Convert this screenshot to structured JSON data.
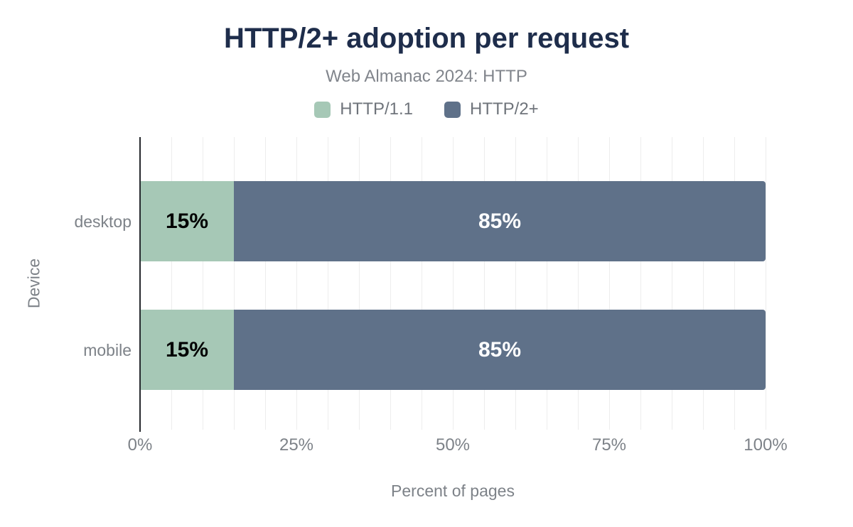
{
  "title": "HTTP/2+ adoption per request",
  "subtitle": "Web Almanac 2024: HTTP",
  "colors": {
    "title_text": "#1e2d4b",
    "muted_text": "#7d8288",
    "legend_text": "#6f747b",
    "axis_line": "#26292e",
    "gridline": "#ededed",
    "series_http11": "#a6c8b6",
    "series_http2plus": "#5f7189",
    "data_label_on_light": "#000000",
    "data_label_on_dark": "#ffffff"
  },
  "legend": [
    {
      "label": "HTTP/1.1",
      "color": "#a6c8b6"
    },
    {
      "label": "HTTP/2+",
      "color": "#5f7189"
    }
  ],
  "chart_data": {
    "type": "bar",
    "orientation": "horizontal",
    "stacked": true,
    "title": "HTTP/2+ adoption per request",
    "subtitle": "Web Almanac 2024: HTTP",
    "categories": [
      "desktop",
      "mobile"
    ],
    "series": [
      {
        "name": "HTTP/1.1",
        "color": "#a6c8b6",
        "values": [
          15,
          15
        ],
        "labels": [
          "15%",
          "15%"
        ],
        "label_color": "#000000"
      },
      {
        "name": "HTTP/2+",
        "color": "#5f7189",
        "values": [
          85,
          85
        ],
        "labels": [
          "85%",
          "85%"
        ],
        "label_color": "#ffffff"
      }
    ],
    "xlabel": "Percent of pages",
    "ylabel": "Device",
    "xlim": [
      0,
      100
    ],
    "x_ticks": [
      "0%",
      "25%",
      "50%",
      "75%",
      "100%"
    ],
    "x_tick_values": [
      0,
      25,
      50,
      75,
      100
    ],
    "grid": "vertical minor gridlines every 5%",
    "legend_position": "top center"
  }
}
